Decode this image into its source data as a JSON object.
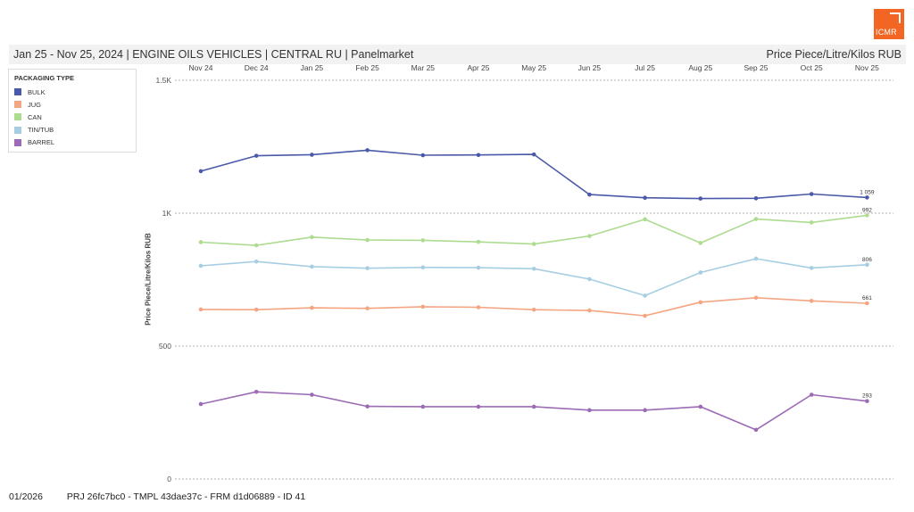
{
  "header": {
    "title": "Jan 25 - Nov 25, 2024 | ENGINE OILS VEHICLES | CENTRAL RU | Panelmarket",
    "measure": "Price Piece/Litre/Kilos RUB",
    "logo_text": "ICMR",
    "logo_color": "#f26522"
  },
  "legend": {
    "title": "PACKAGING TYPE",
    "items": [
      {
        "label": "BULK",
        "color": "#4a5aa8"
      },
      {
        "label": "JUG",
        "color": "#f4a582"
      },
      {
        "label": "CAN",
        "color": "#addc91"
      },
      {
        "label": "TIN/TUB",
        "color": "#a6cee3"
      },
      {
        "label": "BARREL",
        "color": "#9b6bb5"
      }
    ]
  },
  "footer": {
    "date": "01/2026",
    "ids": "PRJ 26fc7bc0 - TMPL 43dae37c - FRM d1d06889 - ID 41"
  },
  "chart_data": {
    "type": "line",
    "title": "",
    "xlabel": "",
    "ylabel": "Price Piece/Litre/Kilos RUB",
    "categories": [
      "Nov 24",
      "Dec 24",
      "Jan 25",
      "Feb 25",
      "Mar 25",
      "Apr 25",
      "May 25",
      "Jun 25",
      "Jul 25",
      "Aug 25",
      "Sep 25",
      "Oct 25",
      "Nov 25"
    ],
    "ylim": [
      0,
      1500
    ],
    "yticks": [
      0,
      500,
      1000,
      1500
    ],
    "ytick_labels": [
      "0",
      "500",
      "1K",
      "1.5K"
    ],
    "x_axis_position": "top",
    "grid": "dashed horizontal",
    "legend_position": "top-left",
    "series": [
      {
        "name": "BULK",
        "color": "#4a5aa8",
        "values": [
          1158,
          1216,
          1220,
          1237,
          1218,
          1219,
          1221,
          1070,
          1058,
          1055,
          1056,
          1072,
          1059
        ],
        "end_label": "1 059"
      },
      {
        "name": "CAN",
        "color": "#addc91",
        "values": [
          891,
          879,
          910,
          899,
          898,
          892,
          884,
          914,
          977,
          888,
          978,
          965,
          992
        ],
        "end_label": "992"
      },
      {
        "name": "TIN/TUB",
        "color": "#a6cee3",
        "values": [
          802,
          818,
          799,
          793,
          796,
          795,
          791,
          752,
          690,
          777,
          829,
          794,
          806
        ],
        "end_label": "806"
      },
      {
        "name": "JUG",
        "color": "#f4a582",
        "values": [
          638,
          637,
          644,
          642,
          648,
          646,
          637,
          634,
          614,
          665,
          682,
          670,
          661
        ],
        "end_label": "661"
      },
      {
        "name": "BARREL",
        "color": "#9b6bb5",
        "values": [
          282,
          328,
          317,
          273,
          272,
          272,
          272,
          259,
          259,
          272,
          185,
          317,
          293
        ],
        "end_label": "293"
      }
    ]
  }
}
